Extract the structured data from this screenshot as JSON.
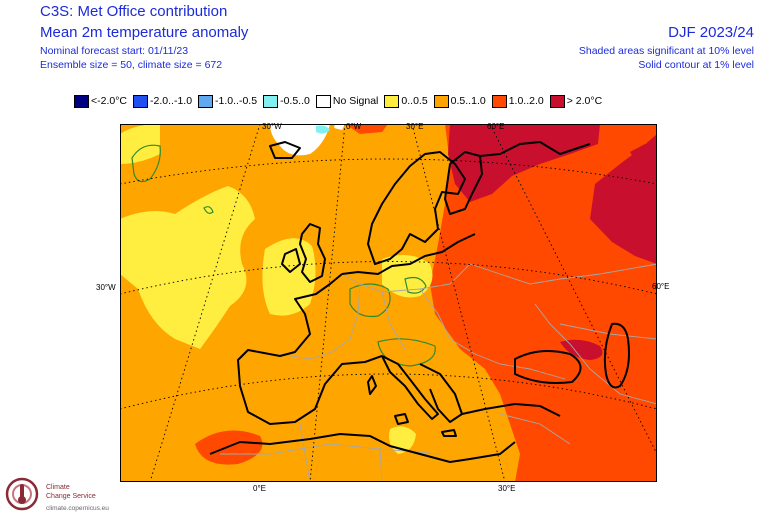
{
  "header": {
    "title_line1": "C3S: Met Office contribution",
    "title_line2": "Mean 2m temperature anomaly",
    "forecast_start": "Nominal forecast start: 01/11/23",
    "ensemble": "Ensemble size = 50, climate size = 672",
    "season": "DJF 2023/24",
    "significance": "Shaded areas significant at 10% level",
    "contour_note": "Solid contour at 1% level"
  },
  "legend": [
    {
      "label": "<-2.0°C",
      "color": "#000080"
    },
    {
      "label": "-2.0..-1.0",
      "color": "#2050f0"
    },
    {
      "label": "-1.0..-0.5",
      "color": "#60a8f0"
    },
    {
      "label": "-0.5..0",
      "color": "#80f0f0"
    },
    {
      "label": "No Signal",
      "color": "#ffffff"
    },
    {
      "label": "0..0.5",
      "color": "#ffee40"
    },
    {
      "label": "0.5..1.0",
      "color": "#ffa500"
    },
    {
      "label": "1.0..2.0",
      "color": "#ff4800"
    },
    {
      "label": "> 2.0°C",
      "color": "#c8102e"
    }
  ],
  "grid_labels": {
    "lon_30w_top": "30°W",
    "lon_0w_top": "0°W",
    "lon_30e_top": "30°E",
    "lon_60e_top": "60°E",
    "lat_30w_left": "30°W",
    "lat_60e_right": "60°E",
    "lon_0e_bottom": "0°E",
    "lon_30e_bottom": "30°E"
  },
  "logo": {
    "name_line1": "Climate",
    "name_line2": "Change Service",
    "url": "climate.copernicus.eu"
  }
}
